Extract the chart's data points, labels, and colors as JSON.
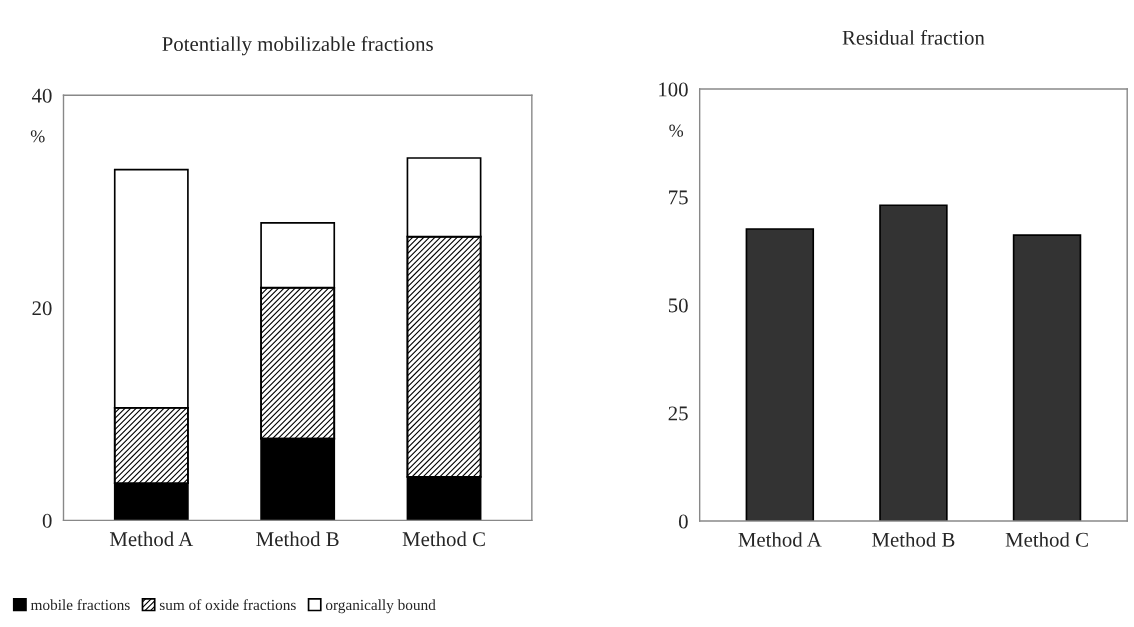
{
  "chart_data": [
    {
      "type": "bar",
      "title": "Potentially mobilizable fractions",
      "ylabel": "%",
      "categories": [
        "Method A",
        "Method B",
        "Method C"
      ],
      "stacked": true,
      "ylim": [
        0,
        40
      ],
      "yticks": [
        0,
        20,
        40
      ],
      "grid": false,
      "legend": "bottom",
      "series": [
        {
          "name": "mobile fractions",
          "color": "#000000",
          "values": [
            3.5,
            7.7,
            4.1
          ]
        },
        {
          "name": "sum of oxide fractions",
          "color": "#000000",
          "values": [
            7.1,
            14.2,
            22.6
          ]
        },
        {
          "name": "organically bound",
          "color": "#ffffff",
          "values": [
            22.4,
            6.1,
            7.4
          ]
        }
      ]
    },
    {
      "type": "bar",
      "title": "Residual fraction",
      "ylabel": "%",
      "categories": [
        "Method A",
        "Method B",
        "Method C"
      ],
      "ylim": [
        0,
        100
      ],
      "yticks": [
        0,
        25,
        50,
        75,
        100
      ],
      "grid": false,
      "series": [
        {
          "color": "#333333",
          "values": [
            67.6,
            73.1,
            66.2
          ]
        }
      ]
    }
  ]
}
